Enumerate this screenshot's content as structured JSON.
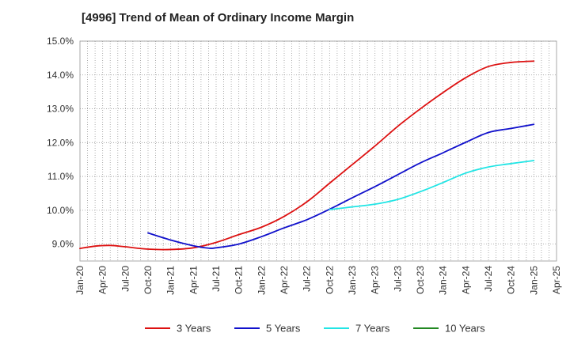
{
  "chart_data": {
    "type": "line",
    "title": "[4996]  Trend of Mean of Ordinary Income Margin",
    "xlabel": "",
    "ylabel": "",
    "ylim": [
      8.5,
      15.0
    ],
    "yticks": [
      9.0,
      10.0,
      11.0,
      12.0,
      13.0,
      14.0,
      15.0
    ],
    "ytick_labels": [
      "9.0%",
      "10.0%",
      "11.0%",
      "12.0%",
      "13.0%",
      "14.0%",
      "15.0%"
    ],
    "x_start": "Jan-20",
    "x_end": "Apr-25",
    "xtick_labels": [
      "Jan-20",
      "Apr-20",
      "Jul-20",
      "Oct-20",
      "Jan-21",
      "Apr-21",
      "Jul-21",
      "Oct-21",
      "Jan-22",
      "Apr-22",
      "Jul-22",
      "Oct-22",
      "Jan-23",
      "Apr-23",
      "Jul-23",
      "Oct-23",
      "Jan-24",
      "Apr-24",
      "Jul-24",
      "Oct-24",
      "Jan-25",
      "Apr-25"
    ],
    "grid": true,
    "legend_position": "bottom",
    "series": [
      {
        "name": "3 Years",
        "color": "#dd1111",
        "points": [
          [
            "Jan-20",
            8.87
          ],
          [
            "Mar-20",
            8.94
          ],
          [
            "May-20",
            8.96
          ],
          [
            "Jul-20",
            8.92
          ],
          [
            "Oct-20",
            8.85
          ],
          [
            "Jan-21",
            8.84
          ],
          [
            "Apr-21",
            8.89
          ],
          [
            "Jul-21",
            9.05
          ],
          [
            "Oct-21",
            9.28
          ],
          [
            "Jan-22",
            9.5
          ],
          [
            "Apr-22",
            9.82
          ],
          [
            "Jul-22",
            10.25
          ],
          [
            "Oct-22",
            10.8
          ],
          [
            "Jan-23",
            11.35
          ],
          [
            "Apr-23",
            11.9
          ],
          [
            "Jul-23",
            12.48
          ],
          [
            "Oct-23",
            13.0
          ],
          [
            "Jan-24",
            13.48
          ],
          [
            "Apr-24",
            13.92
          ],
          [
            "Jul-24",
            14.25
          ],
          [
            "Oct-24",
            14.37
          ],
          [
            "Jan-25",
            14.41
          ]
        ]
      },
      {
        "name": "5 Years",
        "color": "#1111cc",
        "points": [
          [
            "Oct-20",
            9.33
          ],
          [
            "Jan-21",
            9.12
          ],
          [
            "Apr-21",
            8.95
          ],
          [
            "Jun-21",
            8.88
          ],
          [
            "Jul-21",
            8.89
          ],
          [
            "Oct-21",
            9.0
          ],
          [
            "Jan-22",
            9.22
          ],
          [
            "Apr-22",
            9.48
          ],
          [
            "Jul-22",
            9.72
          ],
          [
            "Oct-22",
            10.03
          ],
          [
            "Jan-23",
            10.37
          ],
          [
            "Apr-23",
            10.7
          ],
          [
            "Jul-23",
            11.05
          ],
          [
            "Oct-23",
            11.4
          ],
          [
            "Jan-24",
            11.7
          ],
          [
            "Apr-24",
            12.01
          ],
          [
            "Jul-24",
            12.3
          ],
          [
            "Oct-24",
            12.42
          ],
          [
            "Jan-25",
            12.54
          ]
        ]
      },
      {
        "name": "7 Years",
        "color": "#22e5e5",
        "points": [
          [
            "Oct-22",
            10.02
          ],
          [
            "Jan-23",
            10.1
          ],
          [
            "Apr-23",
            10.18
          ],
          [
            "Jul-23",
            10.32
          ],
          [
            "Oct-23",
            10.55
          ],
          [
            "Jan-24",
            10.82
          ],
          [
            "Apr-24",
            11.1
          ],
          [
            "Jul-24",
            11.28
          ],
          [
            "Oct-24",
            11.38
          ],
          [
            "Jan-25",
            11.47
          ]
        ]
      },
      {
        "name": "10 Years",
        "color": "#228822",
        "points": []
      }
    ]
  }
}
